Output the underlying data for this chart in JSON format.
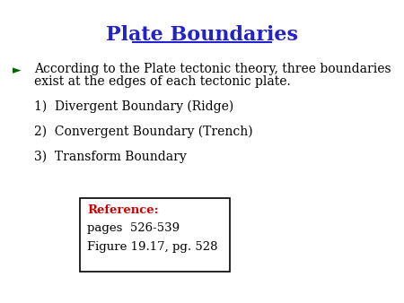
{
  "title": "Plate Boundaries",
  "title_color": "#2222CC",
  "title_fontsize": 16,
  "background_color": "#ffffff",
  "bullet_arrow": "►",
  "bullet_color": "#006400",
  "bullet_text_line1": "According to the Plate tectonic theory, three boundaries",
  "bullet_text_line2": "exist at the edges of each tectonic plate.",
  "bullet_fontsize": 10,
  "items": [
    "1)  Divergent Boundary (Ridge)",
    "2)  Convergent Boundary (Trench)",
    "3)  Transform Boundary"
  ],
  "items_fontsize": 10,
  "items_color": "#000000",
  "ref_label": "Reference:",
  "ref_label_color": "#cc0000",
  "ref_lines": [
    "pages  526-539",
    "Figure 19.17, pg. 528"
  ],
  "ref_fontsize": 9.5,
  "ref_text_color": "#000000",
  "box_facecolor": "#ffffff",
  "box_edgecolor": "#000000"
}
